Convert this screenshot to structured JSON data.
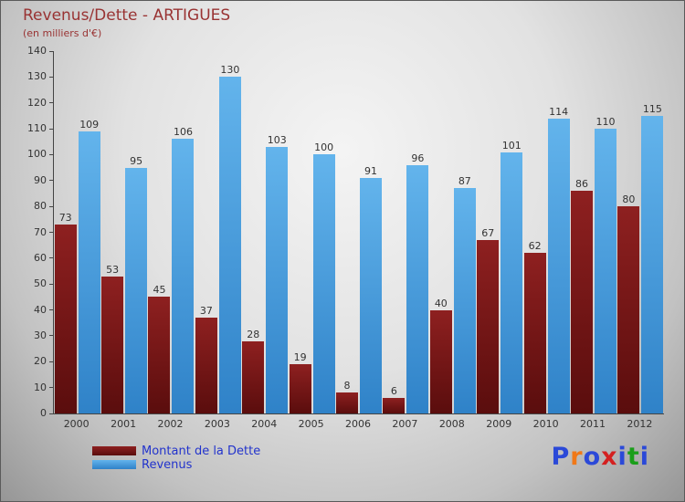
{
  "title": "Revenus/Dette - ARTIGUES",
  "subtitle": "(en milliers d'€)",
  "chart_data": {
    "type": "bar",
    "title": "Revenus/Dette - ARTIGUES",
    "subtitle": "(en milliers d'€)",
    "categories": [
      "2000",
      "2001",
      "2002",
      "2003",
      "2004",
      "2005",
      "2006",
      "2007",
      "2008",
      "2009",
      "2010",
      "2011",
      "2012"
    ],
    "series": [
      {
        "name": "Montant de la Dette",
        "color_top": "#8e2020",
        "color_bottom": "#5a0d0d",
        "values": [
          73,
          53,
          45,
          37,
          28,
          19,
          8,
          6,
          40,
          67,
          62,
          86,
          80
        ]
      },
      {
        "name": "Revenus",
        "color_top": "#63b4ec",
        "color_bottom": "#2f82c8",
        "values": [
          109,
          95,
          106,
          130,
          103,
          100,
          91,
          96,
          87,
          101,
          114,
          110,
          115
        ]
      }
    ],
    "ylim": [
      0,
      140
    ],
    "ytick_step": 10,
    "grid": false,
    "legend_position": "bottom-left"
  },
  "legend": {
    "items": [
      {
        "label": "Montant de la Dette",
        "color_top": "#8e2020",
        "color_bottom": "#5a0d0d"
      },
      {
        "label": "Revenus",
        "color_top": "#63b4ec",
        "color_bottom": "#2f82c8"
      }
    ]
  },
  "logo": {
    "letters": [
      {
        "ch": "P",
        "color": "#2b49d8"
      },
      {
        "ch": "r",
        "color": "#f07818"
      },
      {
        "ch": "o",
        "color": "#2b49d8"
      },
      {
        "ch": "x",
        "color": "#d42020"
      },
      {
        "ch": "i",
        "color": "#2b49d8"
      },
      {
        "ch": "t",
        "color": "#1a9e1a"
      },
      {
        "ch": "i",
        "color": "#2b49d8"
      }
    ]
  }
}
